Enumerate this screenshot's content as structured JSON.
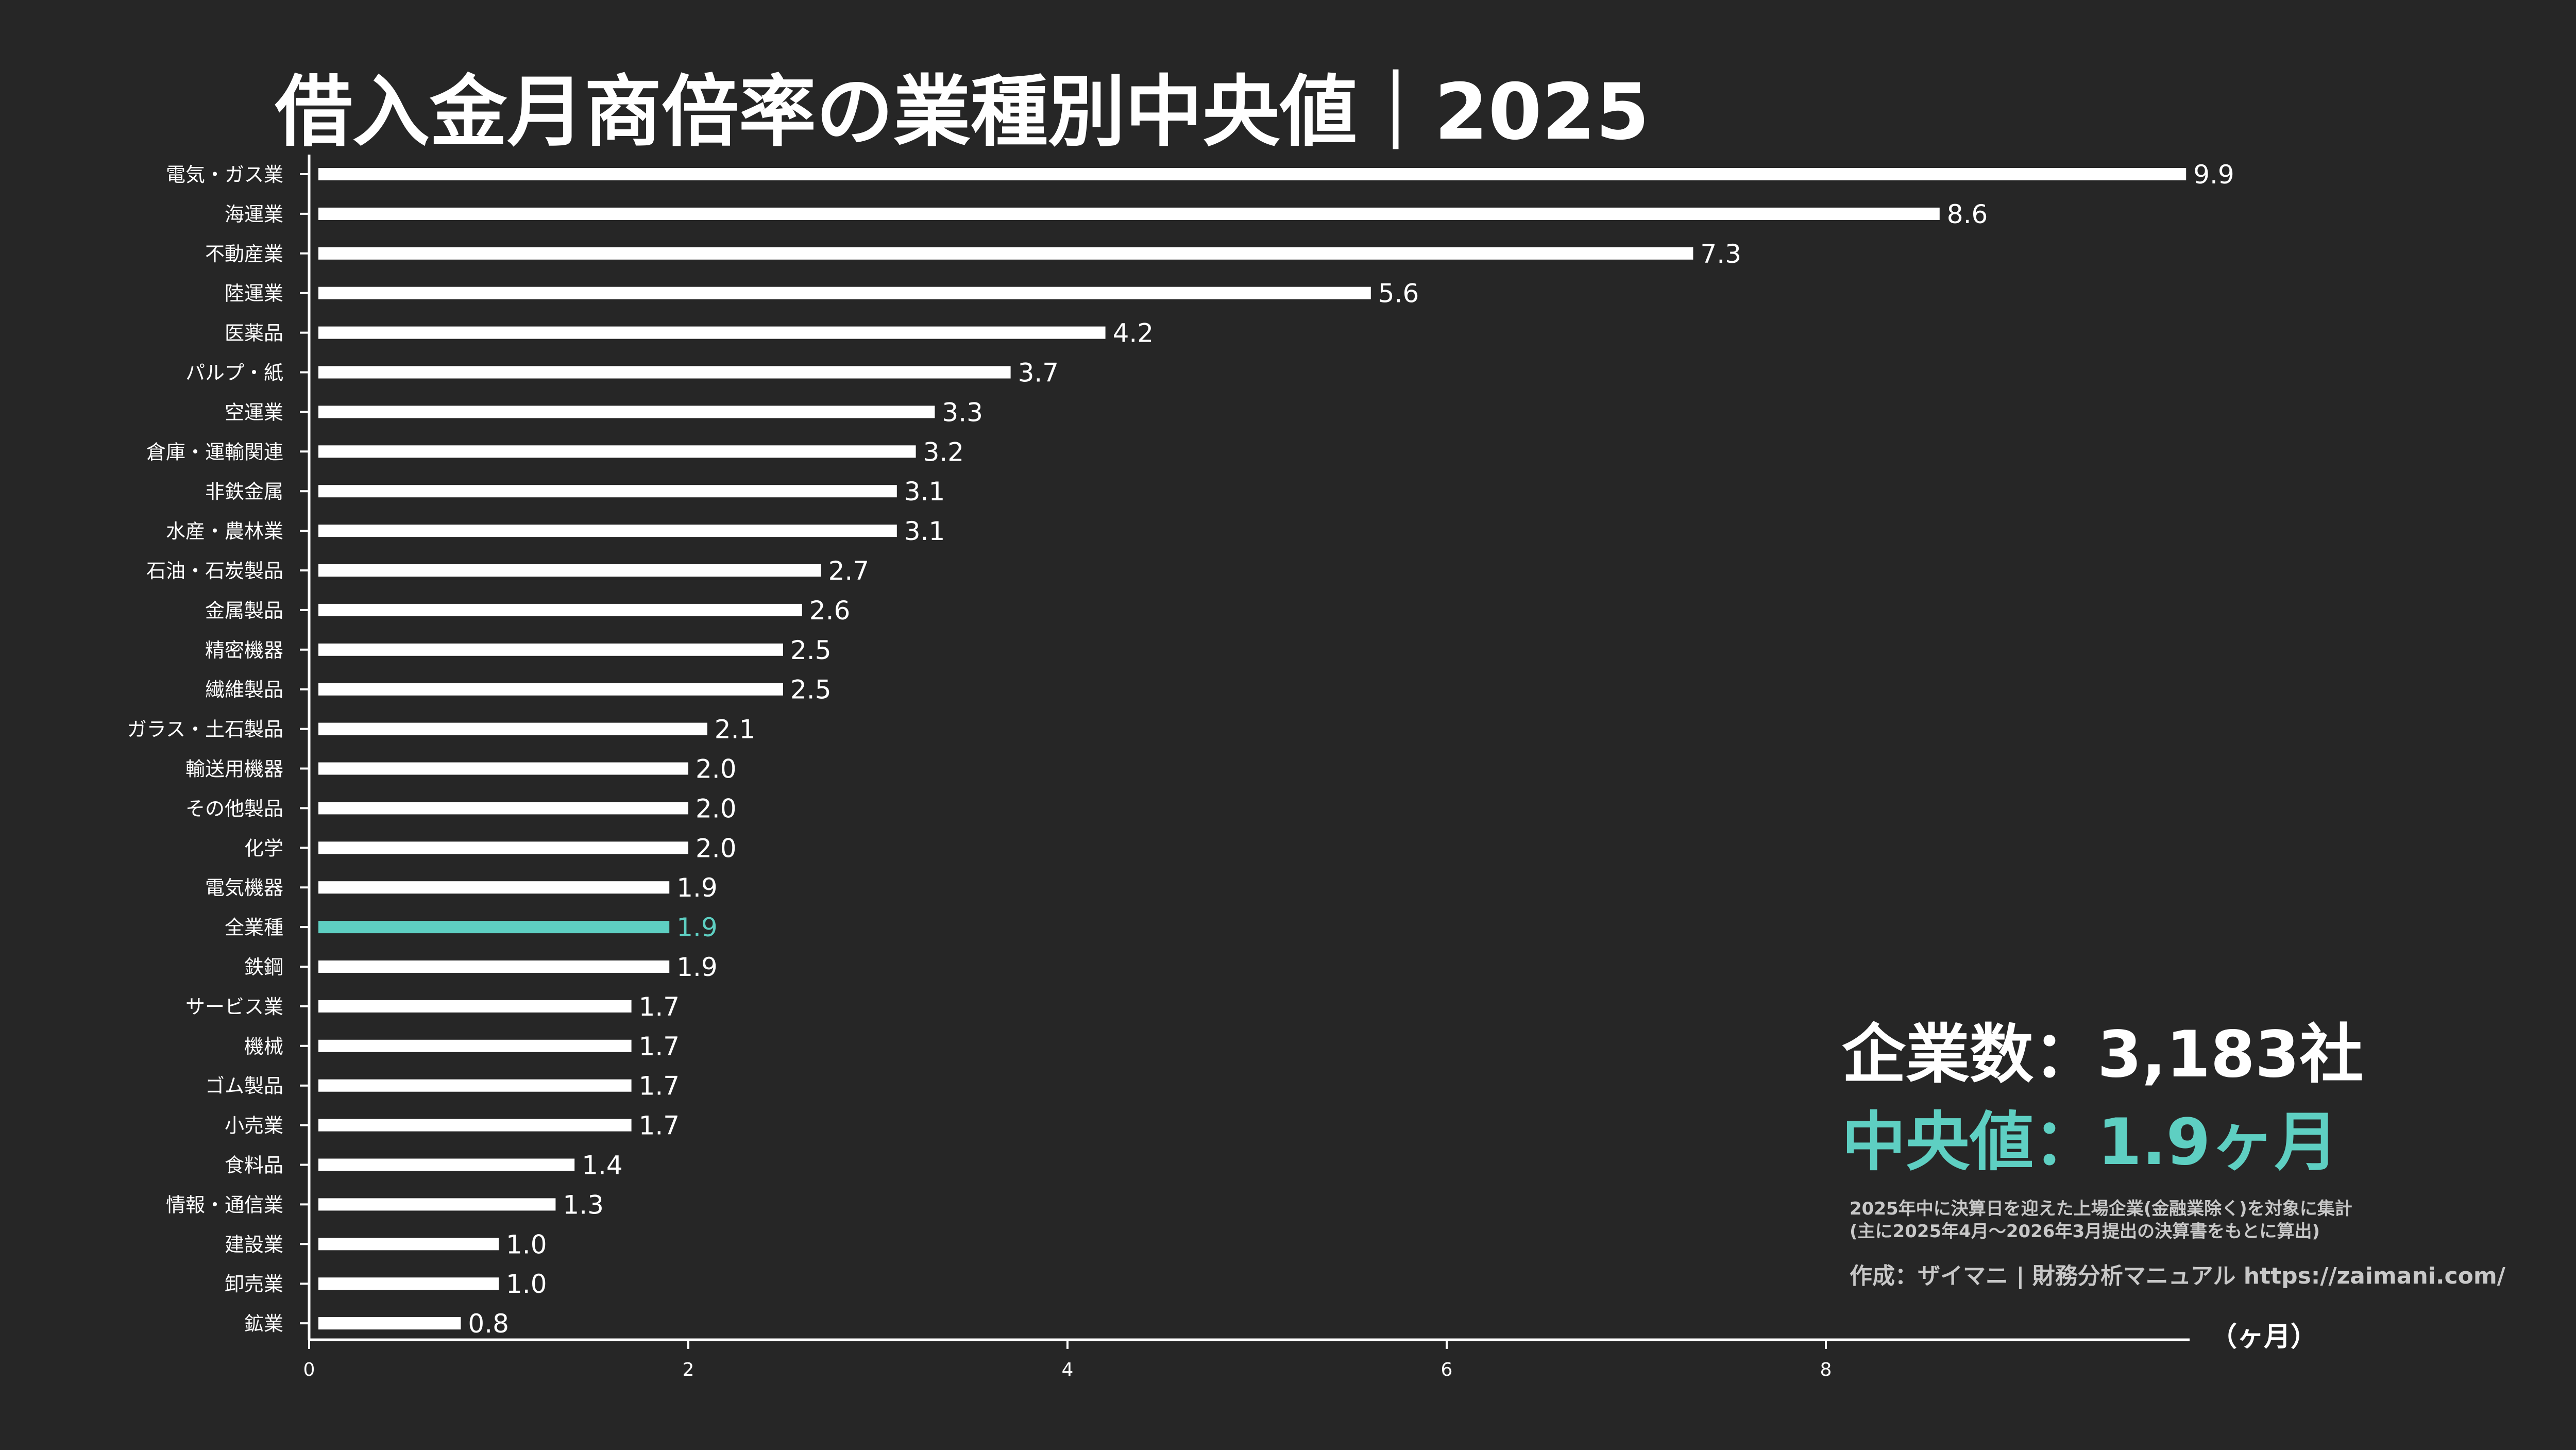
{
  "title": "借入金月商倍率の業種別中央値｜2025",
  "info": {
    "company_count": "企業数：3,183社",
    "median": "中央値：1.9ヶ月",
    "note_line1": "2025年中に決算日を迎えた上場企業(金融業除く)を対象に集計",
    "note_line2": "(主に2025年4月〜2026年3月提出の決算書をもとに算出)",
    "credit": "作成：ザイマニ | 財務分析マニュアル https://zaimani.com/"
  },
  "colors": {
    "background": "#262626",
    "bar": "#ffffff",
    "highlight": "#5ecfc2",
    "text": "#ffffff"
  },
  "chart_data": {
    "type": "bar",
    "orientation": "horizontal",
    "title": "借入金月商倍率の業種別中央値｜2025",
    "xlabel": "（ヶ月）",
    "ylabel": "",
    "xlim": [
      0,
      9.9
    ],
    "xticks": [
      0,
      2,
      4,
      6,
      8
    ],
    "grid": false,
    "highlight_category": "全業種",
    "categories": [
      "電気・ガス業",
      "海運業",
      "不動産業",
      "陸運業",
      "医薬品",
      "パルプ・紙",
      "空運業",
      "倉庫・運輸関連",
      "非鉄金属",
      "水産・農林業",
      "石油・石炭製品",
      "金属製品",
      "精密機器",
      "繊維製品",
      "ガラス・土石製品",
      "輸送用機器",
      "その他製品",
      "化学",
      "電気機器",
      "全業種",
      "鉄鋼",
      "サービス業",
      "機械",
      "ゴム製品",
      "小売業",
      "食料品",
      "情報・通信業",
      "建設業",
      "卸売業",
      "鉱業"
    ],
    "values": [
      9.9,
      8.6,
      7.3,
      5.6,
      4.2,
      3.7,
      3.3,
      3.2,
      3.1,
      3.1,
      2.7,
      2.6,
      2.5,
      2.5,
      2.1,
      2.0,
      2.0,
      2.0,
      1.9,
      1.9,
      1.9,
      1.7,
      1.7,
      1.7,
      1.7,
      1.4,
      1.3,
      1.0,
      1.0,
      0.8
    ],
    "value_labels": [
      "9.9",
      "8.6",
      "7.3",
      "5.6",
      "4.2",
      "3.7",
      "3.3",
      "3.2",
      "3.1",
      "3.1",
      "2.7",
      "2.6",
      "2.5",
      "2.5",
      "2.1",
      "2.0",
      "2.0",
      "2.0",
      "1.9",
      "1.9",
      "1.9",
      "1.7",
      "1.7",
      "1.7",
      "1.7",
      "1.4",
      "1.3",
      "1.0",
      "1.0",
      "0.8"
    ]
  }
}
